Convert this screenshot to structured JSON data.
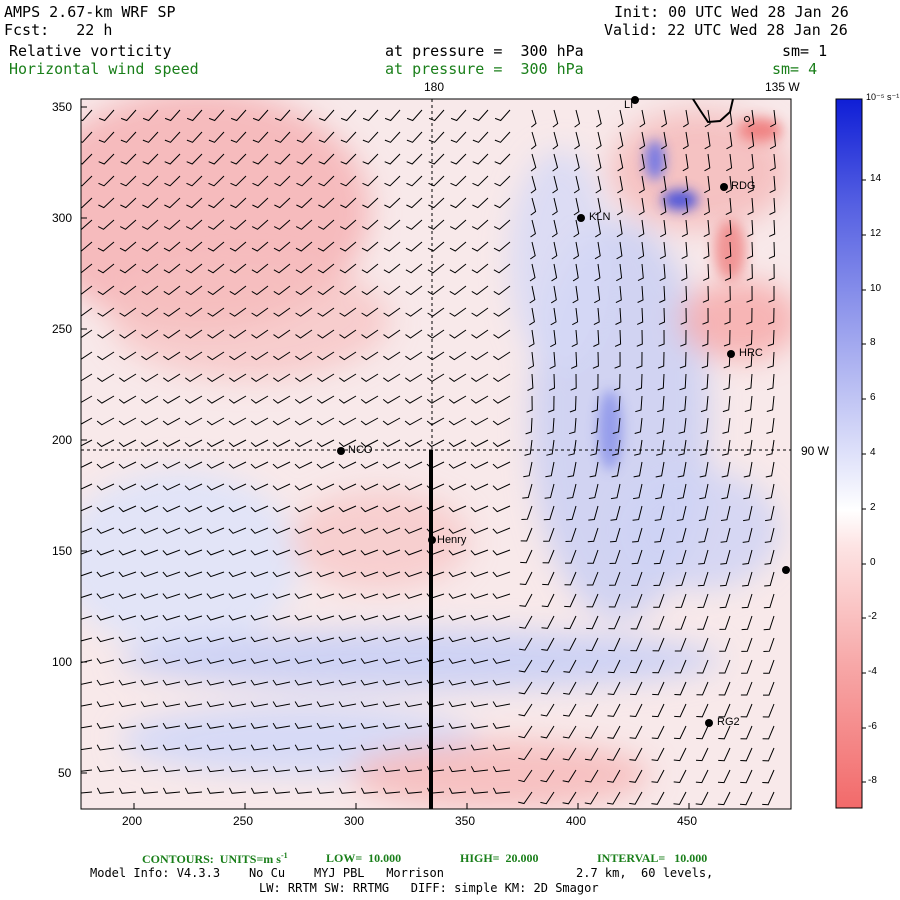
{
  "header": {
    "model": "AMPS 2.67-km WRF SP",
    "fcst": "Fcst:   22 h",
    "init": "Init: 00 UTC Wed 28 Jan 26",
    "valid": "Valid: 22 UTC Wed 28 Jan 26",
    "field1": "Relative vorticity",
    "field1_level": "at pressure =  300 hPa",
    "field1_sm": "sm= 1",
    "field2": "Horizontal wind speed",
    "field2_level": "at pressure =  300 hPa",
    "field2_sm": "sm= 4"
  },
  "map": {
    "lon_180": "180",
    "lon_135w": "135 W",
    "lat_90w": "90 W",
    "x_ticks": [
      "200",
      "250",
      "300",
      "350",
      "400",
      "450"
    ],
    "y_ticks": [
      "350",
      "300",
      "250",
      "200",
      "150",
      "100",
      "50"
    ],
    "stations": [
      {
        "name": "RDG"
      },
      {
        "name": "KLN"
      },
      {
        "name": "HRC"
      },
      {
        "name": "NCO"
      },
      {
        "name": "Henry"
      },
      {
        "name": "RG2"
      },
      {
        "name": "LI"
      }
    ],
    "colorbar": {
      "unit": "10⁻⁵ s⁻¹",
      "labels": [
        "14",
        "12",
        "10",
        "8",
        "6",
        "4",
        "2",
        "0",
        "-2",
        "-4",
        "-6",
        "-8"
      ]
    }
  },
  "footer": {
    "contours": "CONTOURS:  UNITS=m s",
    "contours_sup": "-1",
    "low": "LOW=  10.000",
    "high": "HIGH=  20.000",
    "interval": "INTERVAL=   10.000",
    "model_info": "Model Info: V4.3.3    No Cu    MYJ PBL   Morrison",
    "grid": "2.7 km,  60 levels,",
    "physics": "LW: RRTM SW: RRTMG   DIFF: simple KM: 2D Smagor"
  }
}
